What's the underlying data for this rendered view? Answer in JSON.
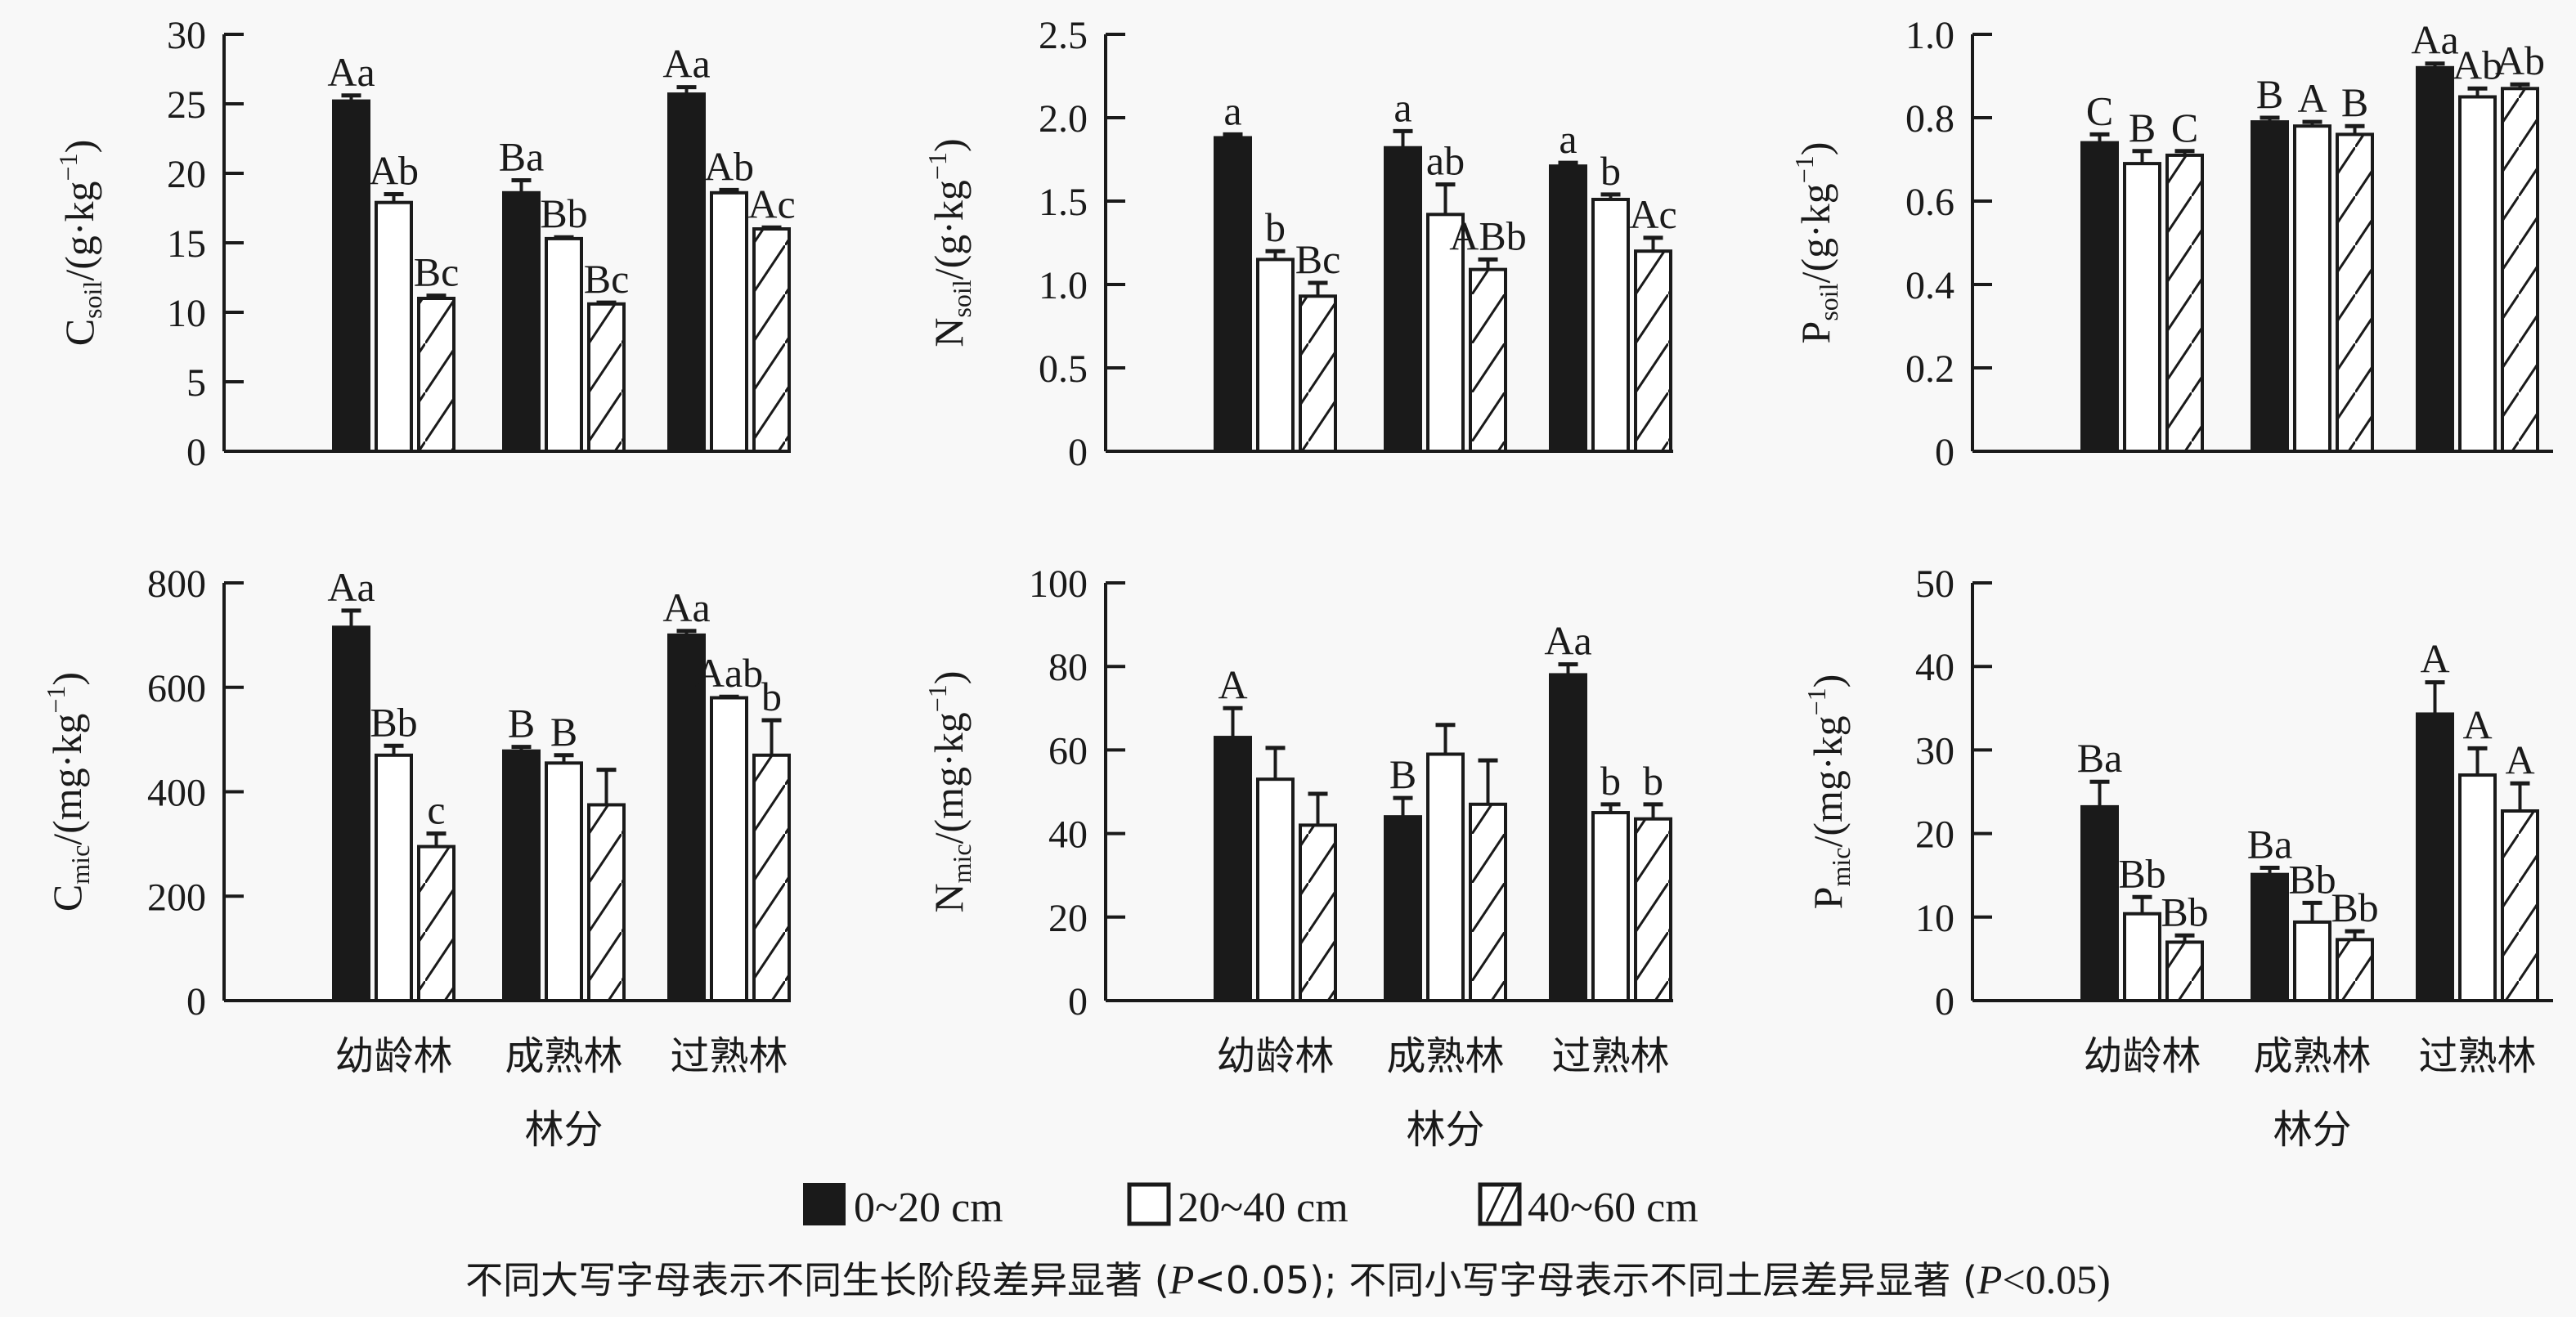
{
  "chart_data": [
    {
      "type": "bar",
      "id": "c-soil",
      "ylabel_main": "C",
      "ylabel_sub": "soil",
      "ylabel_unit": "/(g·kg",
      "ylabel_sup": "−1",
      "ylabel_close": ")",
      "ylim": [
        0,
        30
      ],
      "yticks": [
        "0",
        "5",
        "10",
        "15",
        "20",
        "25",
        "30"
      ],
      "ytick_values": [
        0,
        5,
        10,
        15,
        20,
        25,
        30
      ],
      "categories": [
        "幼龄林",
        "成熟林",
        "过熟林"
      ],
      "series": [
        {
          "name": "0~20 cm",
          "values": [
            25.2,
            18.6,
            25.7
          ],
          "errors": [
            0.4,
            0.9,
            0.5
          ],
          "labels": [
            "Aa",
            "Ba",
            "Aa"
          ]
        },
        {
          "name": "20~40 cm",
          "values": [
            17.9,
            15.3,
            18.6
          ],
          "errors": [
            0.6,
            0.1,
            0.2
          ],
          "labels": [
            "Ab",
            "Bb",
            "Ab"
          ]
        },
        {
          "name": "40~60 cm",
          "values": [
            11.0,
            10.6,
            16.0
          ],
          "errors": [
            0.2,
            0.1,
            0.1
          ],
          "labels": [
            "Bc",
            "Bc",
            "Ac"
          ]
        }
      ],
      "show_xlabels": false
    },
    {
      "type": "bar",
      "id": "n-soil",
      "ylabel_main": "N",
      "ylabel_sub": "soil",
      "ylabel_unit": "/(g·kg",
      "ylabel_sup": "−1",
      "ylabel_close": ")",
      "ylim": [
        0,
        2.5
      ],
      "yticks": [
        "0",
        "0.5",
        "1.0",
        "1.5",
        "2.0",
        "2.5"
      ],
      "ytick_values": [
        0,
        0.5,
        1.0,
        1.5,
        2.0,
        2.5
      ],
      "categories": [
        "幼龄林",
        "成熟林",
        "过熟林"
      ],
      "series": [
        {
          "name": "0~20 cm",
          "values": [
            1.88,
            1.82,
            1.71
          ],
          "errors": [
            0.02,
            0.1,
            0.02
          ],
          "labels": [
            "a",
            "a",
            "a"
          ]
        },
        {
          "name": "20~40 cm",
          "values": [
            1.15,
            1.42,
            1.51
          ],
          "errors": [
            0.05,
            0.18,
            0.03
          ],
          "labels": [
            "b",
            "ab",
            "b"
          ]
        },
        {
          "name": "40~60 cm",
          "values": [
            0.93,
            1.09,
            1.2
          ],
          "errors": [
            0.08,
            0.06,
            0.08
          ],
          "labels": [
            "Bc",
            "ABb",
            "Ac"
          ]
        }
      ],
      "show_xlabels": false
    },
    {
      "type": "bar",
      "id": "p-soil",
      "ylabel_main": "P",
      "ylabel_sub": "soil",
      "ylabel_unit": "/(g·kg",
      "ylabel_sup": "−1",
      "ylabel_close": ")",
      "ylim": [
        0,
        1.0
      ],
      "yticks": [
        "0",
        "0.2",
        "0.4",
        "0.6",
        "0.8",
        "1.0"
      ],
      "ytick_values": [
        0,
        0.2,
        0.4,
        0.6,
        0.8,
        1.0
      ],
      "categories": [
        "幼龄林",
        "成熟林",
        "过熟林"
      ],
      "series": [
        {
          "name": "0~20 cm",
          "values": [
            0.74,
            0.79,
            0.92
          ],
          "errors": [
            0.02,
            0.01,
            0.01
          ],
          "labels": [
            "C",
            "B",
            "Aa"
          ]
        },
        {
          "name": "20~40 cm",
          "values": [
            0.69,
            0.78,
            0.85
          ],
          "errors": [
            0.03,
            0.01,
            0.02
          ],
          "labels": [
            "B",
            "A",
            "Ab"
          ]
        },
        {
          "name": "40~60 cm",
          "values": [
            0.71,
            0.76,
            0.87
          ],
          "errors": [
            0.01,
            0.02,
            0.01
          ],
          "labels": [
            "C",
            "B",
            "Ab"
          ]
        }
      ],
      "show_xlabels": false
    },
    {
      "type": "bar",
      "id": "c-mic",
      "ylabel_main": "C",
      "ylabel_sub": "mic",
      "ylabel_unit": "/(mg·kg",
      "ylabel_sup": "−1",
      "ylabel_close": ")",
      "ylim": [
        0,
        800
      ],
      "yticks": [
        "0",
        "200",
        "400",
        "600",
        "800"
      ],
      "ytick_values": [
        0,
        200,
        400,
        600,
        800
      ],
      "categories": [
        "幼龄林",
        "成熟林",
        "过熟林"
      ],
      "series": [
        {
          "name": "0~20 cm",
          "values": [
            715,
            478,
            700
          ],
          "errors": [
            32,
            8,
            8
          ],
          "labels": [
            "Aa",
            "B",
            "Aa"
          ]
        },
        {
          "name": "20~40 cm",
          "values": [
            470,
            455,
            580
          ],
          "errors": [
            18,
            15,
            2
          ],
          "labels": [
            "Bb",
            "B",
            "Aab"
          ]
        },
        {
          "name": "40~60 cm",
          "values": [
            295,
            375,
            470
          ],
          "errors": [
            25,
            67,
            67
          ],
          "labels": [
            "c",
            "",
            "b"
          ]
        }
      ],
      "xlabel": "林分",
      "show_xlabels": true
    },
    {
      "type": "bar",
      "id": "n-mic",
      "ylabel_main": "N",
      "ylabel_sub": "mic",
      "ylabel_unit": "/(mg·kg",
      "ylabel_sup": "−1",
      "ylabel_close": ")",
      "ylim": [
        0,
        100
      ],
      "yticks": [
        "0",
        "20",
        "40",
        "60",
        "80",
        "100"
      ],
      "ytick_values": [
        0,
        20,
        40,
        60,
        80,
        100
      ],
      "categories": [
        "幼龄林",
        "成熟林",
        "过熟林"
      ],
      "series": [
        {
          "name": "0~20 cm",
          "values": [
            63,
            44,
            78
          ],
          "errors": [
            7,
            4.5,
            2.5
          ],
          "labels": [
            "A",
            "B",
            "Aa"
          ]
        },
        {
          "name": "20~40 cm",
          "values": [
            53,
            59,
            45
          ],
          "errors": [
            7.5,
            7,
            2
          ],
          "labels": [
            "",
            "",
            "b"
          ]
        },
        {
          "name": "40~60 cm",
          "values": [
            42,
            47,
            43.5
          ],
          "errors": [
            7.5,
            10.5,
            3.5
          ],
          "labels": [
            "",
            "",
            "b"
          ]
        }
      ],
      "xlabel": "林分",
      "show_xlabels": true
    },
    {
      "type": "bar",
      "id": "p-mic",
      "ylabel_main": "P",
      "ylabel_sub": "mic",
      "ylabel_unit": "/(mg·kg",
      "ylabel_sup": "−1",
      "ylabel_close": ")",
      "ylim": [
        0,
        50
      ],
      "yticks": [
        "0",
        "10",
        "20",
        "30",
        "40",
        "50"
      ],
      "ytick_values": [
        0,
        10,
        20,
        30,
        40,
        50
      ],
      "categories": [
        "幼龄林",
        "成熟林",
        "过熟林"
      ],
      "series": [
        {
          "name": "0~20 cm",
          "values": [
            23.2,
            15.1,
            34.3
          ],
          "errors": [
            3.0,
            0.8,
            3.8
          ],
          "labels": [
            "Ba",
            "Ba",
            "A"
          ]
        },
        {
          "name": "20~40 cm",
          "values": [
            10.4,
            9.4,
            27.0
          ],
          "errors": [
            2.0,
            2.3,
            3.2
          ],
          "labels": [
            "Bb",
            "Bb",
            "A"
          ]
        },
        {
          "name": "40~60 cm",
          "values": [
            7.0,
            7.3,
            22.7
          ],
          "errors": [
            0.8,
            1.0,
            3.3
          ],
          "labels": [
            "Bb",
            "Bb",
            "A"
          ]
        }
      ],
      "xlabel": "林分",
      "show_xlabels": true
    }
  ],
  "legend": [
    {
      "label": "0~20 cm",
      "fill": "solid"
    },
    {
      "label": "20~40 cm",
      "fill": "open"
    },
    {
      "label": "40~60 cm",
      "fill": "hatched"
    }
  ],
  "footnote": {
    "part1": "不同大写字母表示不同生长阶段差异显著 (",
    "p1": "P",
    "part2": "<0.05); 不同小写字母表示不同土层差异显著 (",
    "p2": "P",
    "part3": "<0.05)"
  },
  "colors": {
    "ink": "#1a1a1a",
    "background": "#f8f8f8",
    "open_fill": "#ffffff"
  }
}
